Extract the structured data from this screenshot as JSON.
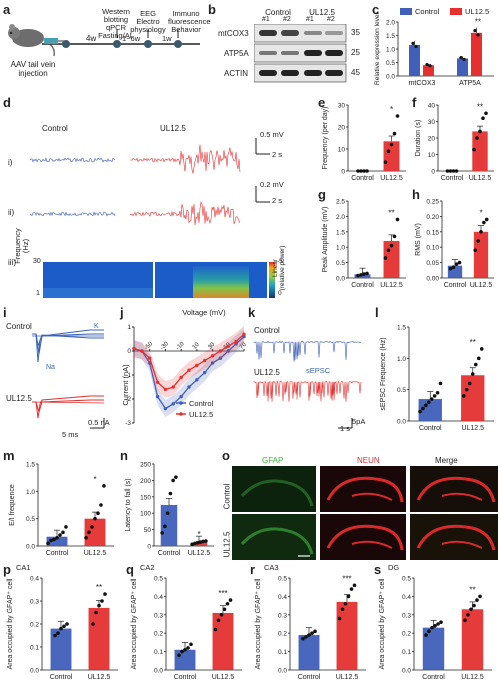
{
  "panel_labels": [
    "a",
    "b",
    "c",
    "d",
    "e",
    "f",
    "g",
    "h",
    "i",
    "j",
    "k",
    "l",
    "m",
    "n",
    "o",
    "p",
    "q",
    "r",
    "s"
  ],
  "panel_a": {
    "injection": "AAV tail vein\ninjection",
    "wait1": "4w",
    "step1": "Western\nblotting\nqPCR\nFasting/AL",
    "wait2": "1~6w",
    "step2": "EEG\nElectro\nphysiology",
    "wait3": "1w",
    "step3": "Immuno\nfluorescence\nBehavior"
  },
  "panel_b": {
    "groups": [
      "Control",
      "UL12.5"
    ],
    "lanes": [
      "#1",
      "#2",
      "#1",
      "#2"
    ],
    "rows": [
      {
        "name": "mtCOX3",
        "mw": "35"
      },
      {
        "name": "ATP5A",
        "mw": "25"
      },
      {
        "name": "ACTIN",
        "mw": "45"
      }
    ]
  },
  "panel_d": {
    "control": "Control",
    "ul": "UL12.5",
    "rows": [
      "i)",
      "ii)",
      "iii)"
    ],
    "scale_i_v": "0.5 mV",
    "scale_i_t": "2 s",
    "scale_ii_v": "0.2 mV",
    "scale_ii_t": "2 s",
    "spec_ylabel": "Frequency\n(Hz)",
    "spec_top": "30",
    "spec_bottom": "1",
    "cbar_label": "Linear\n(relative power)",
    "cbar_top": "-5",
    "cbar_bottom": "0"
  },
  "panel_i": {
    "control": "Control",
    "ul": "UL12.5",
    "k_label": "K",
    "na_label": "Na",
    "scale_t": "5 ms",
    "scale_i": "0.5 nA"
  },
  "panel_j": {
    "xlabel": "Voltage (mV)",
    "ylabel": "Current (nA)",
    "legend": [
      "Control",
      "UL12.5"
    ]
  },
  "panel_k": {
    "control": "Control",
    "ul": "UL12.5",
    "sepsc": "sEPSC",
    "scale_t": "1 s",
    "scale_i": "5pA"
  },
  "panel_o": {
    "cols": [
      "GFAP",
      "NEUN",
      "Merge"
    ],
    "rows": [
      "Control",
      "UL12.5"
    ]
  },
  "chart_data": [
    {
      "panel": "c",
      "type": "bar",
      "categories": [
        "mtCOX3",
        "ATP5A"
      ],
      "series": [
        {
          "name": "Control",
          "values": [
            1.15,
            0.65
          ]
        },
        {
          "name": "UL12.5",
          "values": [
            0.4,
            1.6
          ]
        }
      ],
      "ylabel": "Relative expression level",
      "ylim": [
        0,
        2.0
      ],
      "yticks": [
        "0.0",
        "0.5",
        "1.0",
        "1.5",
        "2.0"
      ],
      "significance": [
        "",
        "**"
      ],
      "legend": "top-right"
    },
    {
      "panel": "e",
      "type": "bar",
      "categories": [
        "Control",
        "UL12.5"
      ],
      "values": [
        0,
        13.5
      ],
      "points": [
        [
          0,
          0,
          0,
          0
        ],
        [
          4,
          9,
          12,
          17,
          25
        ]
      ],
      "ylabel": "Frequency (per day)",
      "ylim": [
        0,
        30
      ],
      "yticks": [
        "0",
        "10",
        "20",
        "30"
      ],
      "significance": "*"
    },
    {
      "panel": "f",
      "type": "bar",
      "categories": [
        "Control",
        "UL12.5"
      ],
      "values": [
        0,
        24
      ],
      "points": [
        [
          0,
          0,
          0,
          0
        ],
        [
          13,
          20,
          24,
          32,
          35
        ]
      ],
      "ylabel": "Duration (s)",
      "ylim": [
        0,
        40
      ],
      "yticks": [
        "0",
        "10",
        "20",
        "30",
        "40"
      ],
      "significance": "**"
    },
    {
      "panel": "g",
      "type": "bar",
      "categories": [
        "Control",
        "UL12.5"
      ],
      "values": [
        0.12,
        1.2
      ],
      "points": [
        [
          0.08,
          0.1,
          0.13,
          0.15
        ],
        [
          0.65,
          0.9,
          1.05,
          1.35,
          1.9
        ]
      ],
      "ylabel": "Peak Amplitude (mV)",
      "ylim": [
        0,
        2.5
      ],
      "yticks": [
        "0.0",
        "0.5",
        "1.0",
        "1.5",
        "2.0",
        "2.5"
      ],
      "significance": "**"
    },
    {
      "panel": "h",
      "type": "bar",
      "categories": [
        "Control",
        "UL12.5"
      ],
      "values": [
        0.04,
        0.15
      ],
      "points": [
        [
          0.03,
          0.035,
          0.045,
          0.05
        ],
        [
          0.09,
          0.12,
          0.15,
          0.18,
          0.19
        ]
      ],
      "ylabel": "RMS (mV)",
      "ylim": [
        0,
        0.25
      ],
      "yticks": [
        "0.00",
        "0.05",
        "0.10",
        "0.15",
        "0.20",
        "0.25"
      ],
      "significance": "*"
    },
    {
      "panel": "j",
      "type": "line",
      "x": [
        -70,
        -60,
        -50,
        -40,
        -30,
        -20,
        -10,
        0,
        10,
        20,
        30,
        40,
        50,
        60,
        70
      ],
      "series": [
        {
          "name": "Control",
          "values": [
            0.1,
            0.0,
            -0.5,
            -1.9,
            -2.4,
            -2.2,
            -1.9,
            -1.5,
            -1.2,
            -0.9,
            -0.5,
            -0.3,
            0.0,
            0.3,
            0.6
          ]
        },
        {
          "name": "UL12.5",
          "values": [
            0.1,
            0.0,
            -0.3,
            -1.3,
            -1.6,
            -1.5,
            -1.1,
            -0.8,
            -0.6,
            -0.4,
            -0.2,
            0.0,
            0.2,
            0.4,
            0.7
          ]
        }
      ],
      "xticks": [
        "-50",
        "-30",
        "-10",
        "10",
        "30",
        "50",
        "70"
      ],
      "ylim": [
        -3,
        1
      ],
      "yticks": [
        "-3",
        "-2",
        "-1",
        "0",
        "1"
      ]
    },
    {
      "panel": "l",
      "type": "bar",
      "categories": [
        "Control",
        "UL12.5"
      ],
      "values": [
        0.35,
        0.73
      ],
      "points": [
        [
          0.15,
          0.2,
          0.25,
          0.3,
          0.35,
          0.4,
          0.45,
          0.6
        ],
        [
          0.4,
          0.5,
          0.6,
          0.75,
          0.9,
          1.0,
          1.15
        ]
      ],
      "ylabel": "sEPSC Frequence (Hz)",
      "ylim": [
        0,
        1.5
      ],
      "yticks": [
        "0.0",
        "0.5",
        "1.0",
        "1.5"
      ],
      "significance": "**"
    },
    {
      "panel": "m",
      "type": "bar",
      "categories": [
        "Control",
        "UL12.5"
      ],
      "values": [
        0.17,
        0.5
      ],
      "points": [
        [
          0.05,
          0.1,
          0.12,
          0.15,
          0.2,
          0.25,
          0.35
        ],
        [
          0.15,
          0.25,
          0.35,
          0.5,
          0.6,
          0.75,
          1.1
        ]
      ],
      "ylabel": "E/I frequence",
      "ylim": [
        0,
        1.5
      ],
      "yticks": [
        "0.0",
        "0.5",
        "1.0",
        "1.5"
      ],
      "significance": "*"
    },
    {
      "panel": "n",
      "type": "bar",
      "categories": [
        "Control",
        "UL12.5"
      ],
      "values": [
        125,
        10
      ],
      "points": [
        [
          40,
          60,
          100,
          160,
          200,
          210
        ],
        [
          5,
          8,
          10,
          12,
          14,
          15
        ]
      ],
      "ylabel": "Latency to fall (s)",
      "ylim": [
        0,
        250
      ],
      "yticks": [
        "0",
        "50",
        "100",
        "150",
        "200",
        "250"
      ],
      "significance": "*"
    },
    {
      "panel": "p",
      "title": "CA1",
      "type": "bar",
      "categories": [
        "Control",
        "UL12.5"
      ],
      "values": [
        0.18,
        0.27
      ],
      "points": [
        [
          0.15,
          0.16,
          0.18,
          0.19,
          0.2
        ],
        [
          0.2,
          0.25,
          0.28,
          0.3,
          0.33
        ]
      ],
      "ylabel": "Area occupied by GFAP⁺ cell",
      "ylim": [
        0,
        0.4
      ],
      "yticks": [
        "0.0",
        "0.1",
        "0.2",
        "0.3",
        "0.4"
      ],
      "significance": "**"
    },
    {
      "panel": "q",
      "title": "CA2",
      "type": "bar",
      "categories": [
        "Control",
        "UL12.5"
      ],
      "values": [
        0.11,
        0.31
      ],
      "points": [
        [
          0.08,
          0.1,
          0.11,
          0.12,
          0.14
        ],
        [
          0.22,
          0.27,
          0.3,
          0.33,
          0.36,
          0.38
        ]
      ],
      "ylabel": "Area occupied by GFAP⁺ cell",
      "ylim": [
        0,
        0.5
      ],
      "yticks": [
        "0.0",
        "0.1",
        "0.2",
        "0.3",
        "0.4",
        "0.5"
      ],
      "significance": "***"
    },
    {
      "panel": "r",
      "title": "CA3",
      "type": "bar",
      "categories": [
        "Control",
        "UL12.5"
      ],
      "values": [
        0.19,
        0.37
      ],
      "points": [
        [
          0.17,
          0.18,
          0.19,
          0.2,
          0.21
        ],
        [
          0.28,
          0.33,
          0.36,
          0.4,
          0.44,
          0.46
        ]
      ],
      "ylabel": "Area occupied by GFAP⁺ cell",
      "ylim": [
        0,
        0.5
      ],
      "yticks": [
        "0.0",
        "0.1",
        "0.2",
        "0.3",
        "0.4",
        "0.5"
      ],
      "significance": "***"
    },
    {
      "panel": "s",
      "title": "DG",
      "type": "bar",
      "categories": [
        "Control",
        "UL12.5"
      ],
      "values": [
        0.23,
        0.33
      ],
      "points": [
        [
          0.19,
          0.21,
          0.23,
          0.24,
          0.25,
          0.26
        ],
        [
          0.27,
          0.3,
          0.33,
          0.35,
          0.38,
          0.4
        ]
      ],
      "ylabel": "Area occupied by GFAP⁺ cell",
      "ylim": [
        0,
        0.5
      ],
      "yticks": [
        "0.0",
        "0.1",
        "0.2",
        "0.3",
        "0.4",
        "0.5"
      ],
      "significance": "**"
    }
  ],
  "colors": {
    "control": "#3f5fb8",
    "ul": "#e53030",
    "bar_c": "#3f5fb8",
    "bar_u": "#e53030"
  }
}
